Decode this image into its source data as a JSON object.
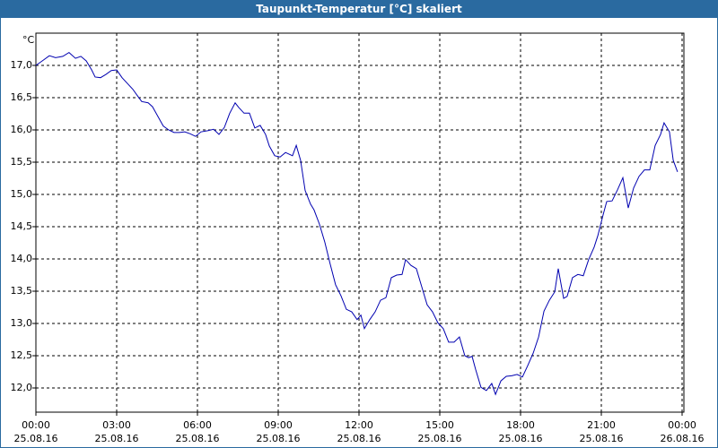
{
  "chart_data": {
    "type": "line",
    "title": "Taupunkt-Temperatur [°C] skaliert",
    "y_unit": "°C",
    "xlim": [
      0,
      24
    ],
    "ylim": [
      11.625,
      17.5
    ],
    "xticks": [
      {
        "value": 0,
        "label": "00:00",
        "date": "25.08.16"
      },
      {
        "value": 3,
        "label": "03:00",
        "date": "25.08.16"
      },
      {
        "value": 6,
        "label": "06:00",
        "date": "25.08.16"
      },
      {
        "value": 9,
        "label": "09:00",
        "date": "25.08.16"
      },
      {
        "value": 12,
        "label": "12:00",
        "date": "25.08.16"
      },
      {
        "value": 15,
        "label": "15:00",
        "date": "25.08.16"
      },
      {
        "value": 18,
        "label": "18:00",
        "date": "25.08.16"
      },
      {
        "value": 21,
        "label": "21:00",
        "date": "25.08.16"
      },
      {
        "value": 24,
        "label": "00:00",
        "date": "26.08.16"
      }
    ],
    "yticks": [
      {
        "value": 12,
        "label": "12,0"
      },
      {
        "value": 12.5,
        "label": "12,5"
      },
      {
        "value": 13,
        "label": "13,0"
      },
      {
        "value": 13.5,
        "label": "13,5"
      },
      {
        "value": 14,
        "label": "14,0"
      },
      {
        "value": 14.5,
        "label": "14,5"
      },
      {
        "value": 15,
        "label": "15,0"
      },
      {
        "value": 15.5,
        "label": "15,5"
      },
      {
        "value": 16,
        "label": "16,0"
      },
      {
        "value": 16.5,
        "label": "16,5"
      },
      {
        "value": 17,
        "label": "17,0"
      }
    ],
    "grid": true,
    "x": [
      0,
      0.27,
      0.5,
      0.73,
      1,
      1.23,
      1.47,
      1.67,
      1.87,
      2.07,
      2.2,
      2.4,
      2.6,
      2.8,
      3,
      3.2,
      3.4,
      3.6,
      3.77,
      3.93,
      4.17,
      4.33,
      4.53,
      4.73,
      4.93,
      5.13,
      5.33,
      5.53,
      5.73,
      5.93,
      6.13,
      6.4,
      6.6,
      6.8,
      7,
      7.2,
      7.4,
      7.53,
      7.73,
      7.93,
      8.13,
      8.33,
      8.53,
      8.67,
      8.87,
      9.07,
      9.27,
      9.53,
      9.67,
      9.83,
      10,
      10.2,
      10.33,
      10.53,
      10.73,
      10.93,
      11.13,
      11.33,
      11.53,
      11.73,
      11.93,
      12.07,
      12.2,
      12.4,
      12.6,
      12.8,
      13,
      13.2,
      13.4,
      13.6,
      13.73,
      13.93,
      14.13,
      14.33,
      14.53,
      14.73,
      14.93,
      15.13,
      15.33,
      15.53,
      15.73,
      15.93,
      16.07,
      16.2,
      16.33,
      16.53,
      16.73,
      16.93,
      17.07,
      17.27,
      17.47,
      17.67,
      17.87,
      18.07,
      18.27,
      18.47,
      18.67,
      18.87,
      19.07,
      19.27,
      19.4,
      19.6,
      19.73,
      19.93,
      20.13,
      20.33,
      20.53,
      20.73,
      20.87,
      21.07,
      21.2,
      21.4,
      21.6,
      21.8,
      22,
      22.2,
      22.4,
      22.6,
      22.8,
      23,
      23.2,
      23.33,
      23.53,
      23.67,
      23.83
    ],
    "series": [
      {
        "color": "#0000b0",
        "values": [
          17.0,
          17.08,
          17.15,
          17.12,
          17.14,
          17.2,
          17.11,
          17.14,
          17.07,
          16.93,
          16.82,
          16.81,
          16.86,
          16.92,
          16.93,
          16.81,
          16.72,
          16.63,
          16.53,
          16.44,
          16.42,
          16.36,
          16.21,
          16.06,
          16.0,
          15.96,
          15.96,
          15.97,
          15.94,
          15.9,
          15.97,
          15.99,
          16.01,
          15.93,
          16.04,
          16.26,
          16.42,
          16.35,
          16.26,
          16.26,
          16.03,
          16.07,
          15.93,
          15.75,
          15.6,
          15.58,
          15.65,
          15.6,
          15.76,
          15.53,
          15.06,
          14.85,
          14.76,
          14.54,
          14.26,
          13.92,
          13.6,
          13.43,
          13.22,
          13.18,
          13.06,
          13.13,
          12.92,
          13.06,
          13.18,
          13.36,
          13.4,
          13.71,
          13.75,
          13.76,
          13.99,
          13.9,
          13.85,
          13.57,
          13.29,
          13.18,
          13.01,
          12.92,
          12.71,
          12.71,
          12.79,
          12.5,
          12.47,
          12.49,
          12.29,
          12.01,
          11.96,
          12.07,
          11.9,
          12.11,
          12.18,
          12.19,
          12.21,
          12.17,
          12.35,
          12.54,
          12.79,
          13.19,
          13.36,
          13.49,
          13.85,
          13.39,
          13.42,
          13.71,
          13.76,
          13.74,
          13.99,
          14.18,
          14.36,
          14.69,
          14.89,
          14.9,
          15.07,
          15.26,
          14.79,
          15.1,
          15.28,
          15.38,
          15.38,
          15.76,
          15.93,
          16.11,
          15.97,
          15.53,
          15.35
        ]
      }
    ]
  }
}
